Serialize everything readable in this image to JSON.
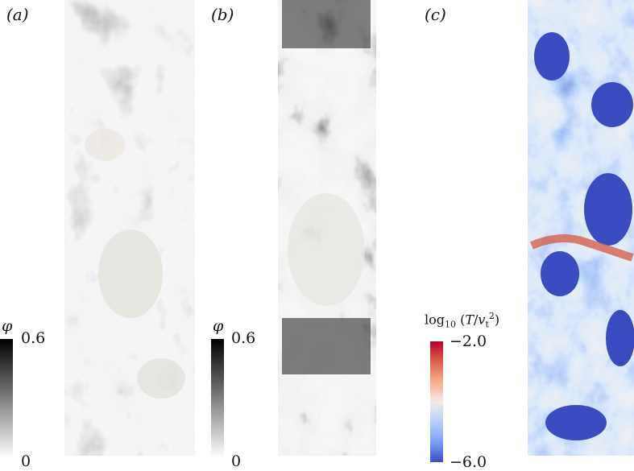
{
  "panels": [
    {
      "label": "(a)",
      "field": "phi"
    },
    {
      "label": "(b)",
      "field": "phi"
    },
    {
      "label": "(c)",
      "field": "log10 (T/v_t^2)"
    }
  ],
  "colorbars": [
    {
      "symbol": "φ",
      "max": "0.6",
      "min": "0",
      "colors": [
        "#000000",
        "#ffffff"
      ]
    },
    {
      "symbol": "φ",
      "max": "0.6",
      "min": "0",
      "colors": [
        "#000000",
        "#ffffff"
      ]
    },
    {
      "title_prefix": "log",
      "title_sub": "10",
      "title_open": " (",
      "title_T": "T",
      "title_slash": "/",
      "title_v": "v",
      "title_vsub": "t",
      "title_vsup": "2",
      "title_close": ")",
      "max": "−2.0",
      "min": "−6.0",
      "colors": [
        "#b40426",
        "#dd5f4b",
        "#f7ac8e",
        "#f2eae6",
        "#b9d0f9",
        "#7b9ff9",
        "#3b4cc0"
      ]
    }
  ]
}
